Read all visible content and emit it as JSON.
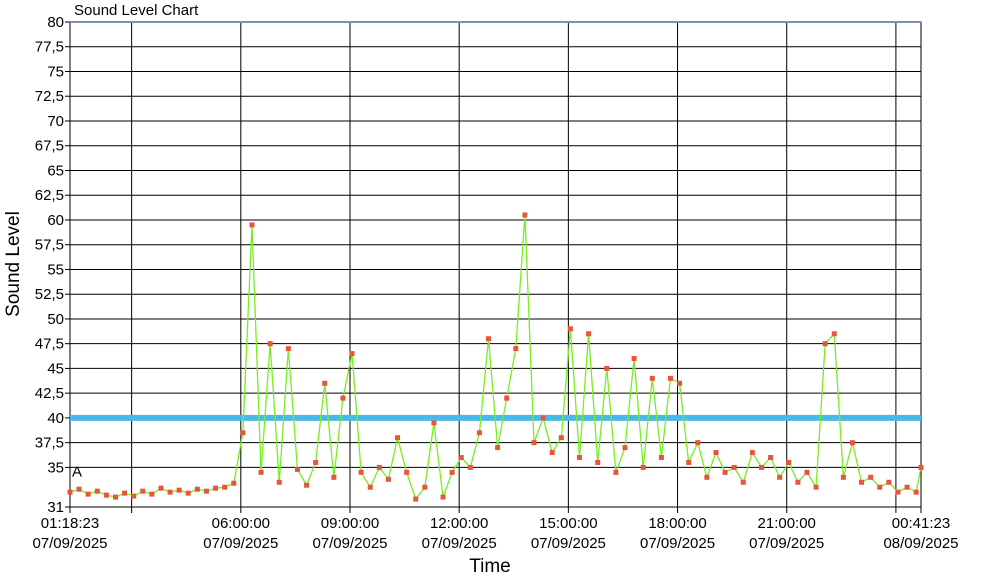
{
  "chart_data": {
    "type": "line",
    "title": "Sound Level Chart",
    "xlabel": "Time",
    "ylabel": "Sound Level",
    "annotation": "A",
    "x": [
      "2025-09-07T01:18:23",
      "2025-09-07T01:33:23",
      "2025-09-07T01:48:23",
      "2025-09-07T02:03:23",
      "2025-09-07T02:18:23",
      "2025-09-07T02:33:23",
      "2025-09-07T02:48:23",
      "2025-09-07T03:03:23",
      "2025-09-07T03:18:23",
      "2025-09-07T03:33:23",
      "2025-09-07T03:48:23",
      "2025-09-07T04:03:23",
      "2025-09-07T04:18:23",
      "2025-09-07T04:33:23",
      "2025-09-07T04:48:23",
      "2025-09-07T05:03:23",
      "2025-09-07T05:18:23",
      "2025-09-07T05:33:23",
      "2025-09-07T05:48:23",
      "2025-09-07T06:03:23",
      "2025-09-07T06:18:23",
      "2025-09-07T06:33:23",
      "2025-09-07T06:48:23",
      "2025-09-07T07:03:23",
      "2025-09-07T07:18:23",
      "2025-09-07T07:33:23",
      "2025-09-07T07:48:23",
      "2025-09-07T08:03:23",
      "2025-09-07T08:18:23",
      "2025-09-07T08:33:23",
      "2025-09-07T08:48:23",
      "2025-09-07T09:03:23",
      "2025-09-07T09:18:23",
      "2025-09-07T09:33:23",
      "2025-09-07T09:48:23",
      "2025-09-07T10:03:23",
      "2025-09-07T10:18:23",
      "2025-09-07T10:33:23",
      "2025-09-07T10:48:23",
      "2025-09-07T11:03:23",
      "2025-09-07T11:18:23",
      "2025-09-07T11:33:23",
      "2025-09-07T11:48:23",
      "2025-09-07T12:03:23",
      "2025-09-07T12:18:23",
      "2025-09-07T12:33:23",
      "2025-09-07T12:48:23",
      "2025-09-07T13:03:23",
      "2025-09-07T13:18:23",
      "2025-09-07T13:33:23",
      "2025-09-07T13:48:23",
      "2025-09-07T14:03:23",
      "2025-09-07T14:18:23",
      "2025-09-07T14:33:23",
      "2025-09-07T14:48:23",
      "2025-09-07T15:03:23",
      "2025-09-07T15:18:23",
      "2025-09-07T15:33:23",
      "2025-09-07T15:48:23",
      "2025-09-07T16:03:23",
      "2025-09-07T16:18:23",
      "2025-09-07T16:33:23",
      "2025-09-07T16:48:23",
      "2025-09-07T17:03:23",
      "2025-09-07T17:18:23",
      "2025-09-07T17:33:23",
      "2025-09-07T17:48:23",
      "2025-09-07T18:03:23",
      "2025-09-07T18:18:23",
      "2025-09-07T18:33:23",
      "2025-09-07T18:48:23",
      "2025-09-07T19:03:23",
      "2025-09-07T19:18:23",
      "2025-09-07T19:33:23",
      "2025-09-07T19:48:23",
      "2025-09-07T20:03:23",
      "2025-09-07T20:18:23",
      "2025-09-07T20:33:23",
      "2025-09-07T20:48:23",
      "2025-09-07T21:03:23",
      "2025-09-07T21:18:23",
      "2025-09-07T21:33:23",
      "2025-09-07T21:48:23",
      "2025-09-07T22:03:23",
      "2025-09-07T22:18:23",
      "2025-09-07T22:33:23",
      "2025-09-07T22:48:23",
      "2025-09-07T23:03:23",
      "2025-09-07T23:18:23",
      "2025-09-07T23:33:23",
      "2025-09-07T23:48:23",
      "2025-09-08T00:03:23",
      "2025-09-08T00:18:23",
      "2025-09-08T00:33:23",
      "2025-09-08T00:41:23"
    ],
    "series": [
      {
        "color": "#77ee22",
        "marker_color": "#e8553a",
        "values": [
          32.5,
          32.8,
          32.3,
          32.6,
          32.2,
          32.0,
          32.4,
          32.1,
          32.6,
          32.3,
          32.9,
          32.5,
          32.7,
          32.4,
          32.8,
          32.6,
          32.9,
          33.0,
          33.4,
          38.5,
          59.5,
          34.5,
          47.5,
          33.5,
          47.0,
          34.8,
          33.2,
          35.5,
          43.5,
          34.0,
          42.0,
          46.5,
          34.5,
          33.0,
          35.0,
          33.8,
          38.0,
          34.5,
          31.8,
          33.0,
          39.5,
          32.0,
          34.5,
          36.0,
          35.0,
          38.5,
          48.0,
          37.0,
          42.0,
          47.0,
          60.5,
          37.5,
          40.0,
          36.5,
          38.0,
          49.0,
          36.0,
          48.5,
          35.5,
          45.0,
          34.5,
          37.0,
          46.0,
          35.0,
          44.0,
          36.0,
          44.0,
          43.5,
          35.5,
          37.5,
          34.0,
          36.5,
          34.5,
          35.0,
          33.5,
          36.5,
          35.0,
          36.0,
          34.0,
          35.5,
          33.5,
          34.5,
          33.0,
          47.5,
          48.5,
          34.0,
          37.5,
          33.5,
          34.0,
          33.0,
          33.5,
          32.5,
          33.0,
          32.5,
          35.0
        ]
      }
    ],
    "xlim": [
      "2025-09-07T01:18:23",
      "2025-09-08T00:41:23"
    ],
    "xticks": [
      {
        "value": "2025-09-07T01:18:23",
        "label": [
          "01:18:23",
          "07/09/2025"
        ]
      },
      {
        "value": "2025-09-07T03:00:00",
        "label": null
      },
      {
        "value": "2025-09-07T06:00:00",
        "label": [
          "06:00:00",
          "07/09/2025"
        ]
      },
      {
        "value": "2025-09-07T09:00:00",
        "label": [
          "09:00:00",
          "07/09/2025"
        ]
      },
      {
        "value": "2025-09-07T12:00:00",
        "label": [
          "12:00:00",
          "07/09/2025"
        ]
      },
      {
        "value": "2025-09-07T15:00:00",
        "label": [
          "15:00:00",
          "07/09/2025"
        ]
      },
      {
        "value": "2025-09-07T18:00:00",
        "label": [
          "18:00:00",
          "07/09/2025"
        ]
      },
      {
        "value": "2025-09-07T21:00:00",
        "label": [
          "21:00:00",
          "07/09/2025"
        ]
      },
      {
        "value": "2025-09-08T00:00:00",
        "label": null
      },
      {
        "value": "2025-09-08T00:41:23",
        "label": [
          "00:41:23",
          "08/09/2025"
        ]
      }
    ],
    "ylim": [
      31,
      80
    ],
    "yticks": [
      31,
      35,
      {
        "value": 37.5,
        "label": "37,5"
      },
      40,
      {
        "value": 42.5,
        "label": "42,5"
      },
      45,
      {
        "value": 47.5,
        "label": "47,5"
      },
      50,
      {
        "value": 52.5,
        "label": "52,5"
      },
      55,
      {
        "value": 57.5,
        "label": "57,5"
      },
      60,
      {
        "value": 62.5,
        "label": "62,5"
      },
      65,
      {
        "value": 67.5,
        "label": "67,5"
      },
      70,
      {
        "value": 72.5,
        "label": "72,5"
      },
      75,
      {
        "value": 77.5,
        "label": "77,5"
      },
      80
    ],
    "threshold": 40,
    "threshold_color": "#4ab8e8",
    "grid": true
  }
}
